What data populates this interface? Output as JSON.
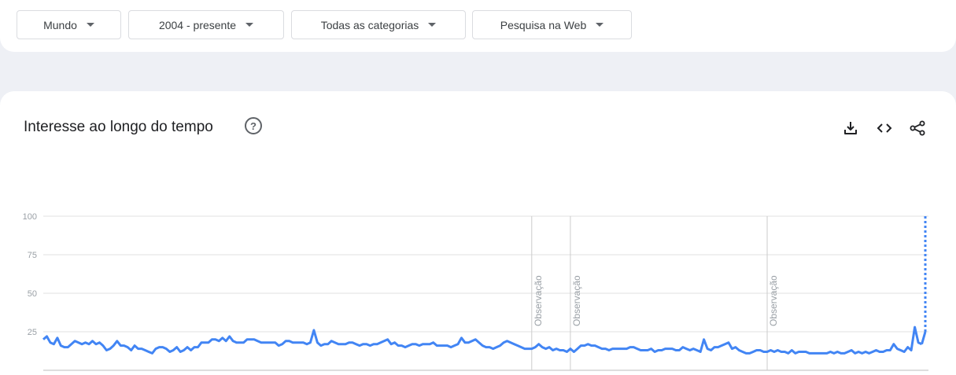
{
  "filters": [
    {
      "id": "region",
      "label": "Mundo"
    },
    {
      "id": "period",
      "label": "2004 - presente"
    },
    {
      "id": "category",
      "label": "Todas as categorias"
    },
    {
      "id": "property",
      "label": "Pesquisa na Web"
    }
  ],
  "card": {
    "title": "Interesse ao longo do tempo",
    "help_symbol": "?",
    "tools": [
      "download-icon",
      "embed-icon",
      "share-icon"
    ]
  },
  "colors": {
    "line": "#4285f4",
    "grid": "#e0e0e0",
    "note_line": "#cccccc",
    "axis_text": "#9aa0a6"
  },
  "chart_data": {
    "type": "line",
    "title": "",
    "xlabel": "",
    "ylabel": "",
    "ylim": [
      0,
      100
    ],
    "yticks": [
      25,
      50,
      75,
      100
    ],
    "grid": true,
    "partial_last_point": true,
    "annotations": [
      {
        "label": "Observação",
        "index": 139
      },
      {
        "label": "Observação",
        "index": 150
      },
      {
        "label": "Observação",
        "index": 206
      }
    ],
    "series": [
      {
        "values": [
          20,
          22,
          18,
          17,
          21,
          16,
          15,
          15,
          17,
          19,
          18,
          17,
          18,
          17,
          19,
          17,
          18,
          16,
          13,
          14,
          16,
          19,
          16,
          16,
          15,
          13,
          16,
          14,
          14,
          13,
          12,
          11,
          14,
          15,
          15,
          14,
          12,
          13,
          15,
          12,
          13,
          15,
          13,
          15,
          15,
          18,
          18,
          18,
          20,
          20,
          19,
          21,
          19,
          22,
          19,
          18,
          18,
          18,
          20,
          20,
          20,
          19,
          18,
          18,
          18,
          18,
          18,
          16,
          17,
          19,
          19,
          18,
          18,
          18,
          18,
          17,
          18,
          26,
          18,
          16,
          17,
          17,
          19,
          18,
          17,
          17,
          17,
          18,
          18,
          17,
          16,
          17,
          17,
          16,
          17,
          17,
          18,
          19,
          20,
          17,
          18,
          16,
          16,
          15,
          16,
          17,
          17,
          16,
          17,
          17,
          17,
          18,
          16,
          16,
          16,
          16,
          15,
          16,
          17,
          21,
          18,
          18,
          19,
          20,
          18,
          16,
          15,
          15,
          14,
          15,
          16,
          18,
          19,
          18,
          17,
          16,
          15,
          14,
          14,
          14,
          15,
          17,
          15,
          14,
          15,
          13,
          14,
          13,
          13,
          12,
          14,
          12,
          14,
          16,
          16,
          17,
          16,
          16,
          15,
          14,
          14,
          13,
          14,
          14,
          14,
          14,
          14,
          15,
          15,
          14,
          13,
          13,
          13,
          14,
          12,
          13,
          13,
          14,
          14,
          14,
          13,
          13,
          15,
          14,
          13,
          14,
          13,
          12,
          20,
          14,
          13,
          15,
          15,
          16,
          17,
          18,
          14,
          15,
          13,
          12,
          11,
          11,
          12,
          13,
          13,
          12,
          12,
          13,
          12,
          13,
          12,
          12,
          11,
          13,
          11,
          12,
          12,
          12,
          11,
          11,
          11,
          11,
          11,
          11,
          12,
          11,
          12,
          11,
          11,
          12,
          13,
          11,
          12,
          11,
          12,
          11,
          12,
          13,
          12,
          12,
          13,
          13,
          17,
          14,
          13,
          12,
          15,
          13,
          28,
          18,
          17,
          25
        ]
      }
    ]
  }
}
